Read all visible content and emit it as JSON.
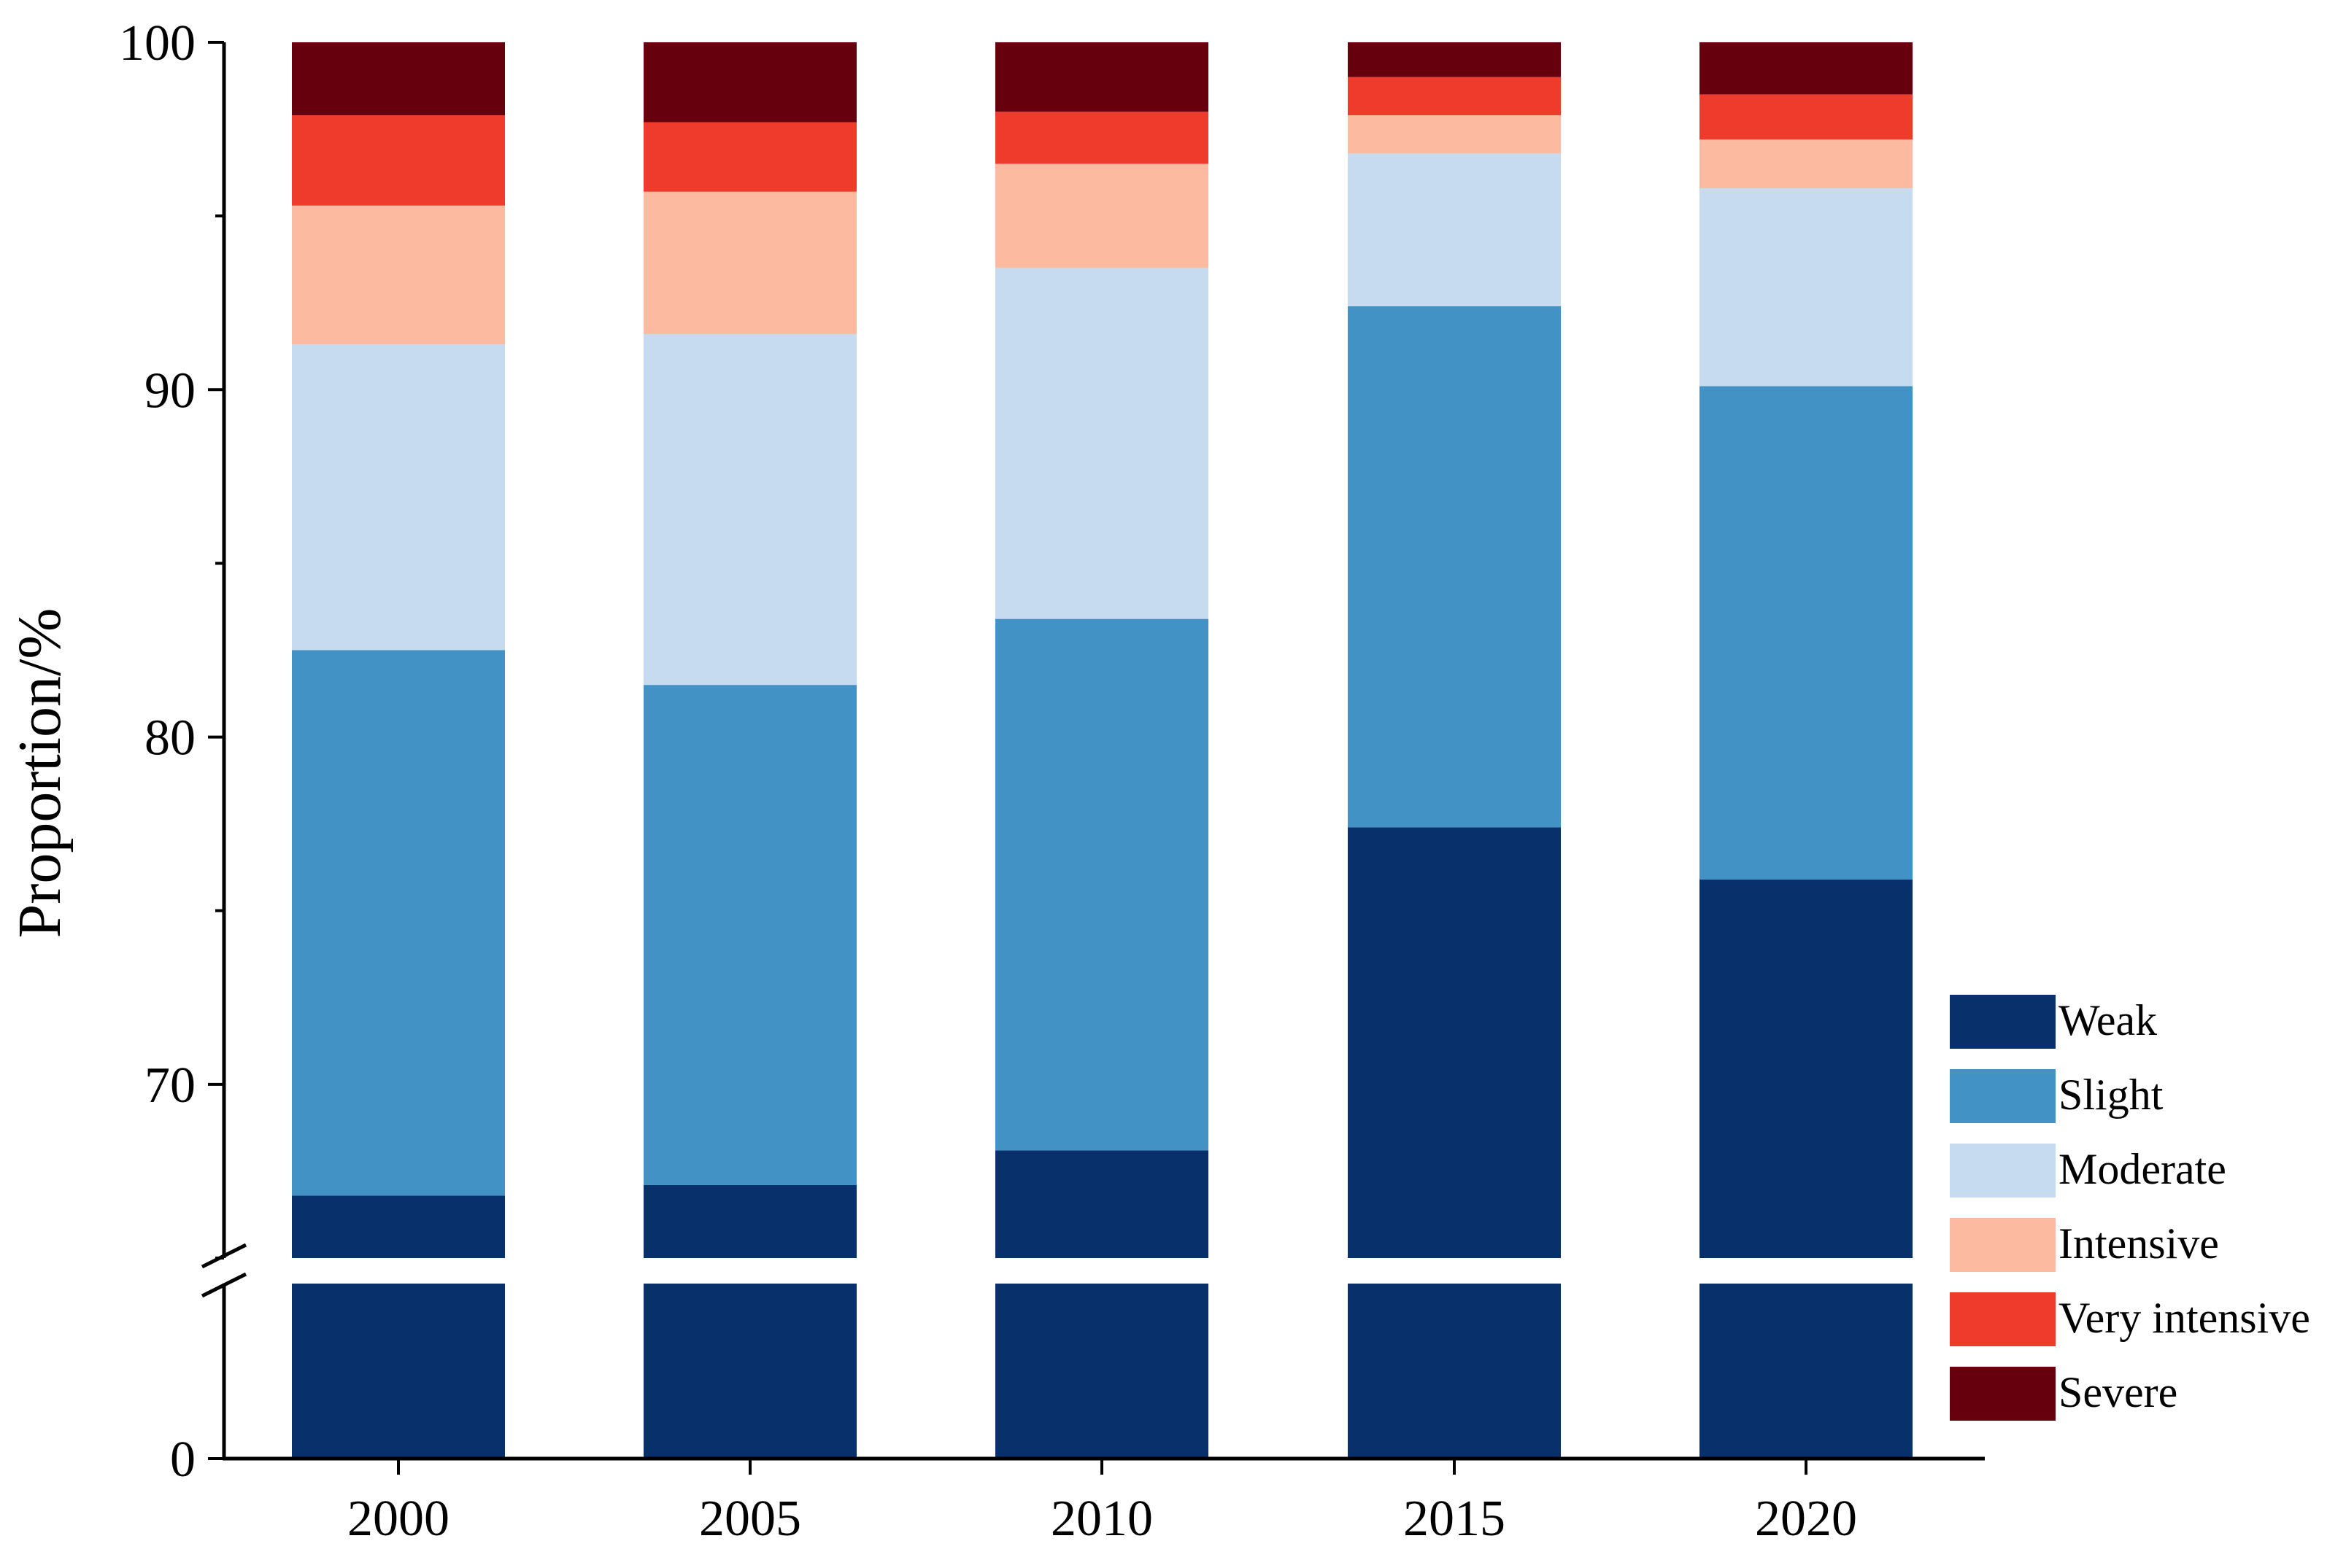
{
  "chart_data": {
    "type": "bar",
    "stacked": true,
    "title": "",
    "xlabel": "",
    "ylabel": "Proportion/%",
    "categories": [
      "2000",
      "2005",
      "2010",
      "2015",
      "2020"
    ],
    "y_axis": {
      "broken": true,
      "lower_segment": [
        0,
        5
      ],
      "upper_segment": [
        65,
        100
      ],
      "tick_values": [
        0,
        70,
        80,
        90,
        100
      ],
      "tick_labels": [
        "0",
        "70",
        "80",
        "90",
        "100"
      ]
    },
    "grid": false,
    "legend_position": "bottom-right",
    "series": [
      {
        "name": "Weak",
        "color": "#08306b",
        "values": [
          66.8,
          67.1,
          68.1,
          77.4,
          75.9
        ]
      },
      {
        "name": "Slight",
        "color": "#4292c6",
        "values": [
          15.7,
          14.4,
          15.3,
          15.0,
          14.2
        ]
      },
      {
        "name": "Moderate",
        "color": "#c6dbef",
        "values": [
          8.8,
          10.1,
          10.1,
          4.4,
          5.7
        ]
      },
      {
        "name": "Intensive",
        "color": "#fcbba1",
        "values": [
          4.0,
          4.1,
          3.0,
          1.1,
          1.4
        ]
      },
      {
        "name": "Very intensive",
        "color": "#ef3b2c",
        "values": [
          2.6,
          2.0,
          1.5,
          1.1,
          1.3
        ]
      },
      {
        "name": "Severe",
        "color": "#67000d",
        "values": [
          2.1,
          2.3,
          2.0,
          1.0,
          1.5
        ]
      }
    ]
  }
}
